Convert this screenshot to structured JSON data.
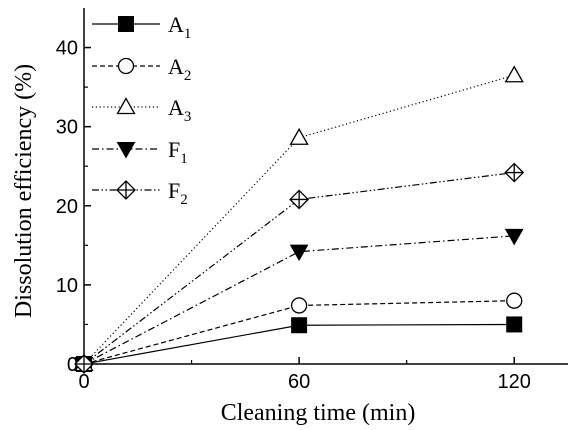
{
  "chart_data": {
    "type": "line",
    "xlabel": "Cleaning time (min)",
    "ylabel": "Dissolution efficiency (%)",
    "xlim": [
      0,
      135
    ],
    "ylim": [
      0,
      45
    ],
    "x_ticks": [
      0,
      60,
      120
    ],
    "y_ticks": [
      0,
      10,
      20,
      30,
      40
    ],
    "x_tick_labels": [
      "0",
      "60",
      "120"
    ],
    "y_tick_labels": [
      "0",
      "10",
      "20",
      "30",
      "40"
    ],
    "x": [
      0,
      60,
      120
    ],
    "legend_position": "top-left",
    "series": [
      {
        "name": "A",
        "subscript": "1",
        "values": [
          0,
          4.9,
          5.0
        ],
        "marker": "filled-square",
        "line": "solid",
        "color": "#000000"
      },
      {
        "name": "A",
        "subscript": "2",
        "values": [
          0,
          7.4,
          8.0
        ],
        "marker": "open-circle",
        "line": "dashed",
        "color": "#000000"
      },
      {
        "name": "A",
        "subscript": "3",
        "values": [
          0,
          28.6,
          36.5
        ],
        "marker": "open-triangle-up",
        "line": "dotted",
        "color": "#000000"
      },
      {
        "name": "F",
        "subscript": "1",
        "values": [
          0,
          14.2,
          16.2
        ],
        "marker": "filled-triangle-down",
        "line": "dash-dot",
        "color": "#000000"
      },
      {
        "name": "F",
        "subscript": "2",
        "values": [
          0,
          20.8,
          24.2
        ],
        "marker": "crossed-diamond",
        "line": "dash-dot-dot",
        "color": "#000000"
      }
    ]
  }
}
